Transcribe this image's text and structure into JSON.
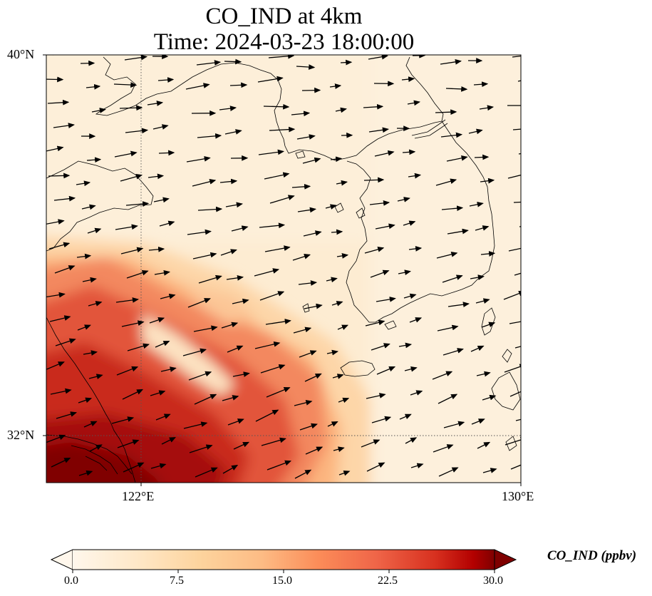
{
  "title": {
    "line1": "CO_IND at 4km",
    "line2": "Time: 2024-03-23 18:00:00"
  },
  "map": {
    "lat_ticks": [
      "40°N",
      "32°N"
    ],
    "lon_ticks": [
      "122°E",
      "130°E"
    ],
    "gridlines": "dotted",
    "field_colormap": "OrRd",
    "colors": {
      "low": "#fff7ec",
      "mid": "#fc8d59",
      "high": "#7f0000"
    }
  },
  "colorbar": {
    "label": "CO_IND (ppbv)",
    "ticks": [
      "0.0",
      "7.5",
      "15.0",
      "22.5",
      "30.0"
    ],
    "min": 0,
    "max": 30,
    "extend": "both"
  },
  "wind_vectors": {
    "color": "#000000",
    "direction": "predominantly eastward"
  }
}
